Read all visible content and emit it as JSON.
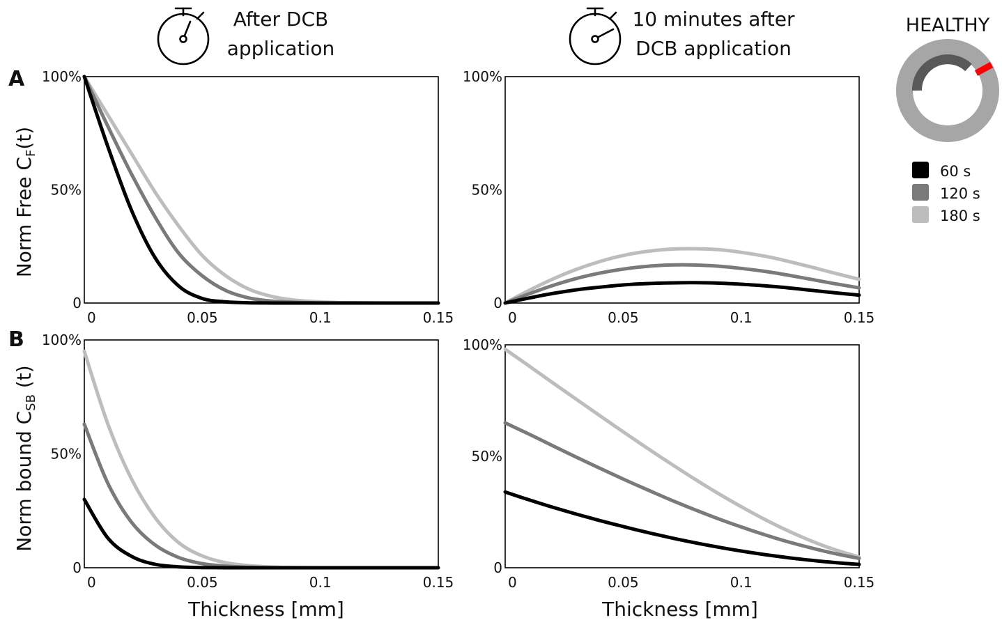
{
  "headers": {
    "left_line1": "After DCB",
    "left_line2": "application",
    "right_line1": "10 minutes after",
    "right_line2": "DCB application"
  },
  "panel_labels": {
    "a": "A",
    "b": "B"
  },
  "ylabels": {
    "a_main": "Norm Free C",
    "a_sub": "F",
    "a_tail": "(t)",
    "b_main": "Norm bound C",
    "b_sub": "SB",
    "b_tail": " (t)"
  },
  "xlabel": "Thickness [mm]",
  "legend": {
    "title": "HEALTHY",
    "items": [
      {
        "label": "60 s",
        "color": "#000000"
      },
      {
        "label": "120 s",
        "color": "#7a7a7a"
      },
      {
        "label": "180 s",
        "color": "#bdbdbd"
      }
    ]
  },
  "colors": {
    "ring": "#a6a6a6",
    "ring_inner": "#595959",
    "marker": "#ff0000"
  },
  "chart_data": [
    {
      "id": "A-left",
      "type": "line",
      "xlim": [
        0,
        0.15
      ],
      "ylim": [
        0,
        1
      ],
      "xticks": [
        "0",
        "0.05",
        "0.1",
        "0.15"
      ],
      "yticks": [
        "0",
        "50%",
        "100%"
      ],
      "x": [
        0,
        0.01,
        0.02,
        0.03,
        0.04,
        0.05,
        0.06,
        0.07,
        0.08,
        0.09,
        0.1,
        0.11,
        0.12,
        0.13,
        0.14,
        0.15
      ],
      "series": [
        {
          "name": "60 s",
          "values": [
            1.0,
            0.69,
            0.41,
            0.2,
            0.075,
            0.02,
            0.005,
            0.001,
            0,
            0,
            0,
            0,
            0,
            0,
            0,
            0
          ]
        },
        {
          "name": "120 s",
          "values": [
            1.0,
            0.78,
            0.57,
            0.38,
            0.22,
            0.12,
            0.055,
            0.022,
            0.008,
            0.003,
            0.001,
            0,
            0,
            0,
            0,
            0
          ]
        },
        {
          "name": "180 s",
          "values": [
            1.0,
            0.83,
            0.66,
            0.49,
            0.34,
            0.21,
            0.12,
            0.06,
            0.028,
            0.012,
            0.005,
            0.002,
            0.001,
            0,
            0,
            0
          ]
        }
      ]
    },
    {
      "id": "A-right",
      "type": "line",
      "xlim": [
        0,
        0.15
      ],
      "ylim": [
        0,
        1
      ],
      "xticks": [
        "0",
        "0.05",
        "0.1",
        "0.15"
      ],
      "yticks": [
        "0",
        "50%",
        "100%"
      ],
      "x": [
        0,
        0.01,
        0.02,
        0.03,
        0.04,
        0.05,
        0.06,
        0.07,
        0.08,
        0.09,
        0.1,
        0.11,
        0.12,
        0.13,
        0.14,
        0.15
      ],
      "series": [
        {
          "name": "60 s",
          "values": [
            0,
            0.022,
            0.042,
            0.058,
            0.07,
            0.08,
            0.086,
            0.089,
            0.09,
            0.088,
            0.083,
            0.076,
            0.067,
            0.056,
            0.045,
            0.035
          ]
        },
        {
          "name": "120 s",
          "values": [
            0,
            0.04,
            0.077,
            0.108,
            0.132,
            0.15,
            0.162,
            0.168,
            0.168,
            0.163,
            0.153,
            0.14,
            0.123,
            0.104,
            0.085,
            0.067
          ]
        },
        {
          "name": "180 s",
          "values": [
            0,
            0.055,
            0.105,
            0.148,
            0.183,
            0.21,
            0.228,
            0.238,
            0.24,
            0.236,
            0.224,
            0.207,
            0.184,
            0.158,
            0.131,
            0.105
          ]
        }
      ]
    },
    {
      "id": "B-left",
      "type": "line",
      "xlim": [
        0,
        0.15
      ],
      "ylim": [
        0,
        1
      ],
      "xticks": [
        "0",
        "0.05",
        "0.1",
        "0.15"
      ],
      "yticks": [
        "0",
        "50%",
        "100%"
      ],
      "x": [
        0,
        0.01,
        0.02,
        0.03,
        0.04,
        0.05,
        0.06,
        0.07,
        0.08,
        0.09,
        0.1,
        0.11,
        0.12,
        0.13,
        0.14,
        0.15
      ],
      "series": [
        {
          "name": "60 s",
          "values": [
            0.3,
            0.13,
            0.05,
            0.015,
            0.004,
            0.001,
            0,
            0,
            0,
            0,
            0,
            0,
            0,
            0,
            0,
            0
          ]
        },
        {
          "name": "120 s",
          "values": [
            0.63,
            0.37,
            0.2,
            0.1,
            0.045,
            0.018,
            0.007,
            0.002,
            0,
            0,
            0,
            0,
            0,
            0,
            0,
            0
          ]
        },
        {
          "name": "180 s",
          "values": [
            0.95,
            0.63,
            0.39,
            0.22,
            0.11,
            0.052,
            0.022,
            0.009,
            0.003,
            0.001,
            0,
            0,
            0,
            0,
            0,
            0
          ]
        }
      ]
    },
    {
      "id": "B-right",
      "type": "line",
      "xlim": [
        0,
        0.15
      ],
      "ylim": [
        0,
        1
      ],
      "xticks": [
        "0",
        "0.05",
        "0.1",
        "0.15"
      ],
      "yticks": [
        "0",
        "50%",
        "100%"
      ],
      "x": [
        0,
        0.01,
        0.02,
        0.03,
        0.04,
        0.05,
        0.06,
        0.07,
        0.08,
        0.09,
        0.1,
        0.11,
        0.12,
        0.13,
        0.14,
        0.15
      ],
      "series": [
        {
          "name": "60 s",
          "values": [
            0.34,
            0.305,
            0.272,
            0.241,
            0.212,
            0.185,
            0.159,
            0.135,
            0.113,
            0.093,
            0.075,
            0.059,
            0.045,
            0.033,
            0.023,
            0.015
          ]
        },
        {
          "name": "120 s",
          "values": [
            0.65,
            0.6,
            0.548,
            0.497,
            0.447,
            0.398,
            0.351,
            0.305,
            0.262,
            0.221,
            0.183,
            0.148,
            0.116,
            0.088,
            0.063,
            0.042
          ]
        },
        {
          "name": "180 s",
          "values": [
            0.98,
            0.906,
            0.831,
            0.757,
            0.683,
            0.61,
            0.538,
            0.468,
            0.4,
            0.335,
            0.274,
            0.217,
            0.165,
            0.119,
            0.08,
            0.048
          ]
        }
      ]
    }
  ]
}
